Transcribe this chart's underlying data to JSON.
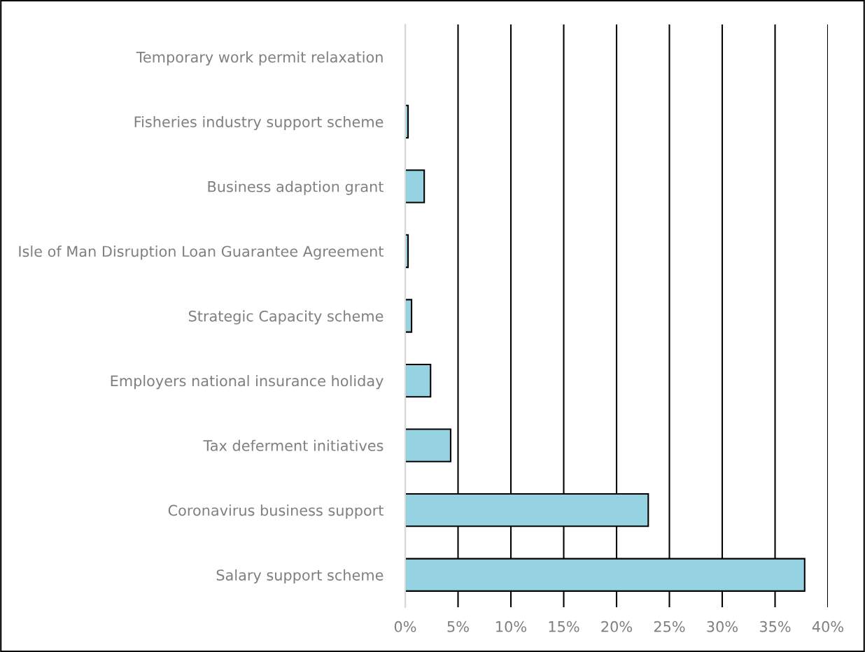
{
  "chart_data": {
    "type": "bar",
    "orientation": "horizontal",
    "categories": [
      "Temporary work permit relaxation",
      "Fisheries industry support scheme",
      "Business adaption grant",
      "Isle of Man Disruption Loan Guarantee Agreement",
      "Strategic Capacity scheme",
      "Employers national insurance holiday",
      "Tax deferment initiatives",
      "Coronavirus business support",
      "Salary support scheme"
    ],
    "values": [
      0,
      0.27,
      1.8,
      0.27,
      0.6,
      2.4,
      4.3,
      23.0,
      37.8
    ],
    "color": "#95d3e3",
    "xlim": [
      0,
      40
    ],
    "xticks": [
      {
        "value": 0,
        "label": "0%"
      },
      {
        "value": 5,
        "label": "5%"
      },
      {
        "value": 10,
        "label": "10%"
      },
      {
        "value": 15,
        "label": "15%"
      },
      {
        "value": 20,
        "label": "20%"
      },
      {
        "value": 25,
        "label": "25%"
      },
      {
        "value": 30,
        "label": "30%"
      },
      {
        "value": 35,
        "label": "35%"
      },
      {
        "value": 40,
        "label": "40%"
      }
    ],
    "grid": "x"
  }
}
